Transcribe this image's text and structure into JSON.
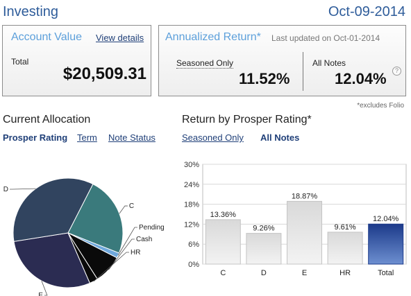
{
  "header": {
    "title": "Investing",
    "date": "Oct-09-2014"
  },
  "account": {
    "heading": "Account Value",
    "details_link": "View details",
    "total_label": "Total",
    "total_value": "$20,509.31"
  },
  "annualized": {
    "heading": "Annualized Return*",
    "updated": "Last updated on Oct-01-2014",
    "seasoned_label": "Seasoned Only",
    "seasoned_value": "11.52%",
    "all_label": "All Notes",
    "all_value": "12.04%",
    "help_glyph": "?",
    "footnote": "*excludes Folio"
  },
  "allocation": {
    "title": "Current Allocation",
    "tabs": [
      "Prosper Rating",
      "Term",
      "Note Status"
    ],
    "active_tab": "Prosper Rating"
  },
  "return_by_rating": {
    "title": "Return by Prosper Rating*",
    "tabs": [
      "Seasoned Only",
      "All Notes"
    ],
    "active_tab": "All Notes"
  },
  "colors": {
    "brand_blue": "#2e5c9a",
    "heading_blue": "#5da0db",
    "link_blue": "#1f3f78",
    "bar_gray": "#d6d6d6",
    "bar_highlight": "#1f3f8f"
  },
  "chart_data": [
    {
      "type": "pie",
      "labels": [
        "C",
        "Pending",
        "Cash",
        "HR",
        "E",
        "D"
      ],
      "values": [
        23.5,
        1.5,
        8.5,
        2.5,
        29.0,
        35.0
      ],
      "colors": [
        "#3a7a7c",
        "#6fa8dc",
        "#0a0a0a",
        "#0a0a0a",
        "#2b2c52",
        "#31445f"
      ]
    },
    {
      "type": "bar",
      "categories": [
        "C",
        "D",
        "E",
        "HR",
        "Total"
      ],
      "values": [
        13.36,
        9.26,
        18.87,
        9.61,
        12.04
      ],
      "value_labels": [
        "13.36%",
        "9.26%",
        "18.87%",
        "9.61%",
        "12.04%"
      ],
      "y_ticks": [
        "30%",
        "24%",
        "18%",
        "12%",
        "6%",
        "0%"
      ],
      "ylim": [
        0,
        30
      ],
      "grid": true,
      "highlight_category": "Total"
    }
  ]
}
